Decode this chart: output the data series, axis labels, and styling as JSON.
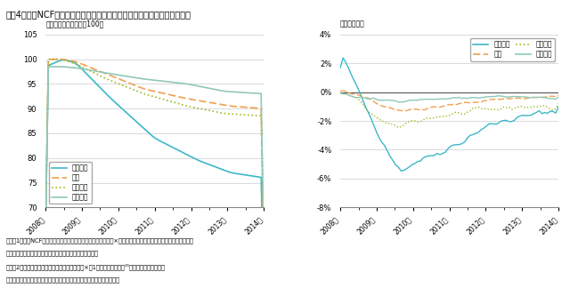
{
  "title": "図表4　鑑定NCFの推移（左：前回ピーク時からの累積変化、右：前期比）",
  "left_ylabel": "指数（前回ピーク時＝100）",
  "right_ylabel": "前期比（％）",
  "left_ylim": [
    70,
    105
  ],
  "right_ylim": [
    -8,
    4
  ],
  "left_yticks": [
    70,
    75,
    80,
    85,
    90,
    95,
    100,
    105
  ],
  "right_yticks": [
    -8,
    -6,
    -4,
    -2,
    0,
    2,
    4
  ],
  "note1": "注）　1．鑑定NCFは、各物件における直近決算期の鑑定評価額×直接還元利回りの合計を前期と比較した数値。",
  "note2": "　　　　（前期に比べて持分の変動があった物件は除く）",
  "note3": "　　　2．累積変化は、当月の指数＝前月の指数×（1＋当月の前期比）¹⁵、として計算した値。",
  "note4": "出所）各投資法人の開示資料をもとに三井住友トラスト基礎研究所作成",
  "colors": {
    "office": "#3cb8c8",
    "residential": "#f0a050",
    "urban": "#a0b820",
    "suburban": "#90c8b8"
  },
  "xtick_labels": [
    "2008年",
    "2009年",
    "2010年",
    "2011年",
    "2012年",
    "2013年",
    "2014年"
  ],
  "legend_office": "オフィス",
  "legend_residential": "住宅",
  "legend_urban": "都心商業",
  "legend_suburban": "郊外商業"
}
